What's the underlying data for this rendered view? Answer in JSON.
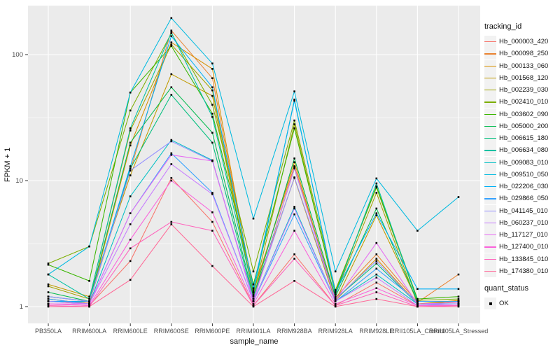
{
  "window": {
    "title": "FPKM expression line plot"
  },
  "colors": {
    "panel_bg": "#EBEBEB",
    "grid": "#FFFFFF",
    "tick_text": "#4D4D4D",
    "axis_title_text": "#111111",
    "point": "#000000",
    "legend_key_bg": "#F2F2F2"
  },
  "axes": {
    "x_label": "sample_name",
    "y_label": "FPKM + 1",
    "y_tick_labels": [
      "1",
      "10",
      "100"
    ],
    "y_tick_values": [
      1,
      10,
      100
    ]
  },
  "legend": {
    "tracking_title": "tracking_id",
    "quant_title": "quant_status",
    "quant_items": [
      {
        "label": "OK"
      }
    ]
  },
  "chart_data": {
    "type": "line",
    "scale_y": "log10",
    "ylim": [
      0.74,
      230
    ],
    "grid": "major-minor",
    "legend_position": "right",
    "title": "",
    "xlabel": "sample_name",
    "ylabel": "FPKM + 1",
    "categories": [
      "PB350LA",
      "RRIM600LA",
      "RRIM600LE",
      "RRIM600SE",
      "RRIM600PE",
      "RRIM901LA",
      "RRIM928BA",
      "RRIM928LA",
      "RRIM928LE",
      "RRII105LA_Control",
      "RRII105LA_Stressed"
    ],
    "point_shape": "square",
    "series": [
      {
        "name": "Hb_000003_420",
        "color": "#F8766D",
        "values": [
          1.05,
          1.02,
          2.3,
          10.5,
          4.7,
          1.02,
          2.6,
          1.02,
          1.55,
          1.02,
          1.05
        ]
      },
      {
        "name": "Hb_000098_250",
        "color": "#EA8331",
        "values": [
          1.1,
          1.08,
          12,
          155,
          65,
          1.35,
          13,
          1.18,
          2.6,
          1.08,
          1.8
        ]
      },
      {
        "name": "Hb_000133_060",
        "color": "#D89000",
        "values": [
          1.15,
          1.05,
          19,
          125,
          77,
          1.3,
          14,
          1.12,
          2.4,
          1.05,
          1.12
        ]
      },
      {
        "name": "Hb_001568_120",
        "color": "#C09B00",
        "values": [
          1.5,
          1.2,
          11,
          70,
          47,
          1.22,
          10.5,
          1.1,
          5.3,
          1.1,
          1.1
        ]
      },
      {
        "name": "Hb_002239_030",
        "color": "#A3A500",
        "values": [
          1.45,
          1.15,
          25,
          120,
          52,
          1.25,
          28,
          1.25,
          8,
          1.05,
          1.1
        ]
      },
      {
        "name": "Hb_002410_010",
        "color": "#7CAE00",
        "values": [
          2.2,
          3,
          36,
          148,
          40,
          1.9,
          30,
          1.35,
          8.8,
          1.12,
          1.15
        ]
      },
      {
        "name": "Hb_003602_090",
        "color": "#39B600",
        "values": [
          2.15,
          1.6,
          50,
          117,
          34,
          1.5,
          26,
          1.3,
          9,
          1.15,
          1.2
        ]
      },
      {
        "name": "Hb_005000_200",
        "color": "#00BB4E",
        "values": [
          1.3,
          1.1,
          20,
          55,
          24,
          1.2,
          15,
          1.2,
          6,
          1.1,
          1.1
        ]
      },
      {
        "name": "Hb_006615_180",
        "color": "#00BF7D",
        "values": [
          1.2,
          1.1,
          12.5,
          48,
          20,
          1.15,
          12.5,
          1.15,
          2.2,
          1.05,
          1.05
        ]
      },
      {
        "name": "Hb_006634_080",
        "color": "#00C1A3",
        "values": [
          1.8,
          1.15,
          26,
          150,
          32,
          1.3,
          44,
          1.25,
          9.5,
          1.1,
          1.1
        ]
      },
      {
        "name": "Hb_009083_010",
        "color": "#00BFC4",
        "values": [
          1.1,
          1.05,
          7.5,
          21,
          14.5,
          1.1,
          6.2,
          1.1,
          1.8,
          1.05,
          1.05
        ]
      },
      {
        "name": "Hb_009510_050",
        "color": "#00BAE0",
        "values": [
          1.8,
          3,
          50,
          195,
          85,
          5,
          51,
          1.9,
          10.4,
          4,
          7.4
        ]
      },
      {
        "name": "Hb_022206_030",
        "color": "#00B0F6",
        "values": [
          1.1,
          1.1,
          13,
          140,
          55,
          1.4,
          43,
          1.3,
          5.5,
          1.38,
          1.38
        ]
      },
      {
        "name": "Hb_029866_050",
        "color": "#35A2FF",
        "values": [
          1.15,
          1.05,
          5.5,
          16.5,
          8,
          1.1,
          5.4,
          1.1,
          2,
          1.1,
          1.1
        ]
      },
      {
        "name": "Hb_041145_010",
        "color": "#9590FF",
        "values": [
          1.2,
          1.1,
          12,
          20.5,
          14.3,
          1.15,
          10.6,
          1.15,
          2.3,
          1.05,
          1.05
        ]
      },
      {
        "name": "Hb_060237_010",
        "color": "#C77CFF",
        "values": [
          1.1,
          1.05,
          4.5,
          13.5,
          7.8,
          1.1,
          6,
          1.1,
          1.7,
          1.02,
          1.05
        ]
      },
      {
        "name": "Hb_117127_010",
        "color": "#E76BF3",
        "values": [
          1.05,
          1.05,
          5.5,
          16,
          14.3,
          1.1,
          12.6,
          1.12,
          3.2,
          1.05,
          1.08
        ]
      },
      {
        "name": "Hb_127400_010",
        "color": "#FA62DB",
        "values": [
          1.05,
          1.02,
          3.4,
          10,
          5.6,
          1.05,
          4,
          1.05,
          1.4,
          1.02,
          1.02
        ]
      },
      {
        "name": "Hb_133845_010",
        "color": "#FF62BC",
        "values": [
          1.02,
          1,
          2.9,
          4.7,
          4,
          1.02,
          2.4,
          1.02,
          1.3,
          1,
          1.02
        ]
      },
      {
        "name": "Hb_174380_010",
        "color": "#FF6A98",
        "values": [
          1,
          1,
          1.63,
          4.5,
          2.1,
          1,
          1.6,
          1,
          1.15,
          1,
          1
        ]
      }
    ]
  }
}
